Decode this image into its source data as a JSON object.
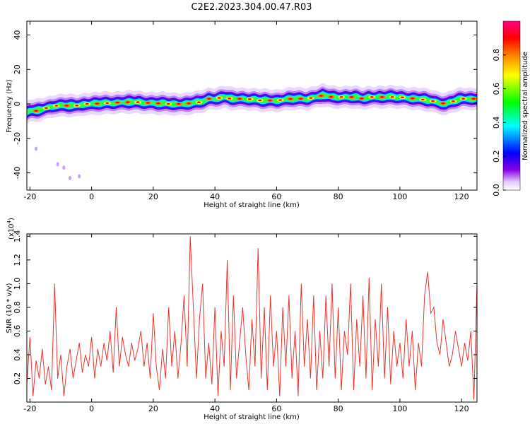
{
  "page_title": "C2E2.2023.304.00.47.R03",
  "chart_data": [
    {
      "type": "heatmap",
      "xlabel": "Height of straight line (km)",
      "ylabel": "Frequency (Hz)",
      "xlim": [
        -21,
        125
      ],
      "ylim": [
        -50,
        48
      ],
      "x_ticks": [
        -20,
        0,
        20,
        40,
        60,
        80,
        100,
        120
      ],
      "x_tick_labels": [
        "-20",
        "0",
        "20",
        "40",
        "60",
        "80",
        "100",
        "120"
      ],
      "y_ticks": [
        -40,
        -20,
        0,
        20,
        40
      ],
      "y_tick_labels": [
        "-40",
        "-20",
        "0",
        "20",
        "40"
      ],
      "grid": false,
      "ridge": {
        "x": [
          -21,
          -20,
          -18,
          -16,
          -14,
          -12,
          -10,
          -8,
          -5,
          -2,
          0,
          5,
          10,
          15,
          20,
          25,
          30,
          35,
          38,
          40,
          43,
          45,
          50,
          55,
          60,
          65,
          70,
          75,
          78,
          80,
          85,
          88,
          90,
          95,
          100,
          105,
          110,
          112,
          115,
          118,
          120,
          125
        ],
        "y": [
          -5,
          -4,
          -4,
          -3,
          -2,
          -1,
          -1,
          -1,
          -1,
          0,
          0,
          0.5,
          1,
          1,
          0.5,
          0,
          0,
          1,
          3,
          3,
          4,
          3,
          3,
          2,
          2,
          3,
          3,
          5,
          4,
          4,
          4,
          3,
          4,
          4,
          4,
          3,
          2,
          1,
          0,
          2,
          3,
          3
        ]
      },
      "colorbar": {
        "label": "Normalized spectral amplitude",
        "range": [
          0.0,
          1.0
        ],
        "ticks": [
          0.0,
          0.2,
          0.4,
          0.6,
          0.8
        ],
        "tick_labels": [
          "0.0",
          "0.2",
          "0.4",
          "0.6",
          "0.8"
        ],
        "colors": [
          "#ffffff",
          "#8a00e6",
          "#0000ff",
          "#00ffff",
          "#00ff00",
          "#ffff00",
          "#ff8000",
          "#ff0000",
          "#ff0080"
        ]
      }
    },
    {
      "type": "line",
      "xlabel": "Height of straight line (km)",
      "ylabel": "SNR (10 * v/v)",
      "y_multiplier": "(x10",
      "y_multiplier_exp": "4",
      "y_multiplier_close": ")",
      "xlim": [
        -21,
        125
      ],
      "ylim": [
        0.0,
        1.42
      ],
      "x_ticks": [
        -20,
        0,
        20,
        40,
        60,
        80,
        100,
        120
      ],
      "x_tick_labels": [
        "-20",
        "0",
        "20",
        "40",
        "60",
        "80",
        "100",
        "120"
      ],
      "y_ticks": [
        0.2,
        0.4,
        0.6,
        0.8,
        1.0,
        1.2,
        1.4
      ],
      "y_tick_labels": [
        "0.2",
        "0.4",
        "0.6",
        "0.8",
        "1.0",
        "1.2",
        "1.4"
      ],
      "color": "#e8362f",
      "grid": false,
      "series": [
        {
          "x": [
            -21,
            -20,
            -19,
            -18,
            -17,
            -16,
            -15,
            -14,
            -13,
            -12,
            -11,
            -10,
            -9,
            -8,
            -7,
            -6,
            -5,
            -4,
            -3,
            -2,
            -1,
            0,
            1,
            2,
            3,
            4,
            5,
            6,
            7,
            8,
            9,
            10,
            11,
            12,
            13,
            14,
            15,
            16,
            17,
            18,
            19,
            20,
            21,
            22,
            23,
            24,
            25,
            26,
            27,
            28,
            29,
            30,
            31,
            32,
            33,
            34,
            35,
            36,
            37,
            38,
            39,
            40,
            41,
            42,
            43,
            44,
            45,
            46,
            47,
            48,
            49,
            50,
            51,
            52,
            53,
            54,
            55,
            56,
            57,
            58,
            59,
            60,
            61,
            62,
            63,
            64,
            65,
            66,
            67,
            68,
            69,
            70,
            71,
            72,
            73,
            74,
            75,
            76,
            77,
            78,
            79,
            80,
            81,
            82,
            83,
            84,
            85,
            86,
            87,
            88,
            89,
            90,
            91,
            92,
            93,
            94,
            95,
            96,
            97,
            98,
            99,
            100,
            101,
            102,
            103,
            104,
            105,
            106,
            107,
            108,
            109,
            110,
            111,
            112,
            113,
            114,
            115,
            116,
            117,
            118,
            119,
            120,
            121,
            122,
            123,
            124,
            125
          ],
          "y": [
            0.15,
            0.55,
            0.05,
            0.35,
            0.2,
            0.45,
            0.15,
            0.3,
            0.1,
            1.0,
            0.2,
            0.4,
            0.05,
            0.3,
            0.45,
            0.2,
            0.35,
            0.5,
            0.25,
            0.4,
            0.3,
            0.55,
            0.2,
            0.45,
            0.3,
            0.5,
            0.35,
            0.6,
            0.25,
            0.8,
            0.3,
            0.55,
            0.4,
            0.3,
            0.5,
            0.35,
            0.45,
            0.6,
            0.3,
            0.5,
            0.2,
            0.75,
            0.3,
            0.1,
            0.45,
            0.2,
            0.8,
            0.3,
            0.6,
            0.2,
            0.5,
            0.9,
            0.3,
            1.4,
            0.8,
            0.2,
            0.7,
            1.0,
            0.2,
            0.5,
            0.15,
            0.8,
            0.05,
            0.6,
            0.3,
            1.2,
            0.1,
            0.9,
            0.2,
            0.5,
            0.8,
            0.4,
            0.1,
            0.7,
            0.3,
            1.3,
            0.2,
            0.8,
            0.1,
            0.9,
            0.3,
            0.6,
            0.05,
            0.8,
            0.3,
            0.9,
            0.2,
            0.6,
            0.05,
            1.0,
            0.3,
            0.7,
            0.2,
            0.9,
            0.1,
            0.6,
            0.2,
            0.9,
            0.3,
            1.0,
            0.2,
            0.8,
            0.1,
            0.6,
            0.4,
            1.0,
            0.1,
            0.7,
            0.3,
            0.9,
            0.2,
            1.05,
            0.1,
            0.7,
            0.3,
            1.0,
            0.2,
            0.8,
            0.15,
            0.6,
            0.3,
            0.5,
            0.2,
            0.7,
            0.3,
            0.6,
            0.1,
            0.5,
            0.3,
            0.9,
            1.1,
            0.75,
            0.8,
            0.5,
            0.4,
            0.7,
            0.5,
            0.3,
            0.4,
            0.6,
            0.45,
            0.3,
            0.5,
            0.35,
            0.6,
            0.02,
            1.0
          ]
        }
      ]
    }
  ]
}
